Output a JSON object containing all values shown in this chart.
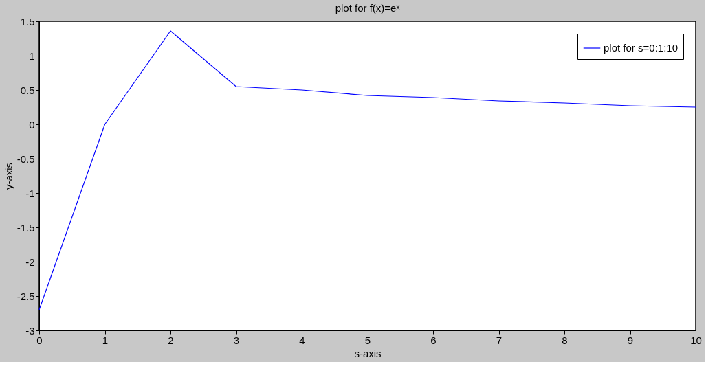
{
  "chart_data": {
    "type": "line",
    "title": "plot for f(x)=eˣ",
    "xlabel": "s-axis",
    "ylabel": "y-axis",
    "x": [
      0,
      1,
      2,
      3,
      4,
      5,
      6,
      7,
      8,
      9,
      10
    ],
    "series": [
      {
        "name": "plot for s=0:1:10",
        "color": "#0000ff",
        "values": [
          -2.7,
          0,
          1.36,
          0.55,
          0.5,
          0.42,
          0.39,
          0.34,
          0.31,
          0.27,
          0.25
        ]
      }
    ],
    "xlim": [
      0,
      10
    ],
    "xticks": [
      0,
      1,
      2,
      3,
      4,
      5,
      6,
      7,
      8,
      9,
      10
    ],
    "ylim": [
      -3,
      1.5
    ],
    "yticks": [
      -3,
      -2.5,
      -2,
      -1.5,
      -1,
      -0.5,
      0,
      0.5,
      1,
      1.5
    ],
    "grid": false,
    "legend": "top right",
    "marker": "none",
    "line_style": "solid"
  }
}
